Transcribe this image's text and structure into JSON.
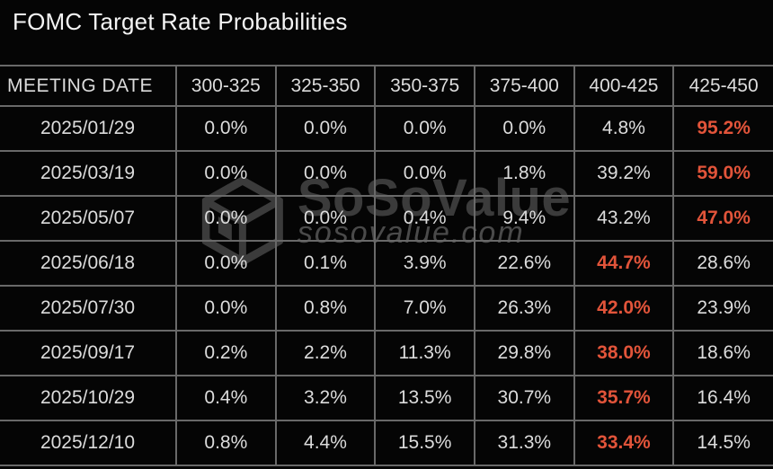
{
  "title": "FOMC Target Rate Probabilities",
  "watermark": {
    "brand": "SoSoValue",
    "site": "sosovalue.com"
  },
  "colors": {
    "background": "#050505",
    "title_text": "#f4f4f4",
    "cell_text": "#dcdcdc",
    "grid_line": "#696969",
    "highlight_text": "#e2543a",
    "watermark_text": "#3b3b3b"
  },
  "chart_data": {
    "type": "table",
    "title": "FOMC Target Rate Probabilities",
    "columns": [
      "MEETING DATE",
      "300-325",
      "325-350",
      "350-375",
      "375-400",
      "400-425",
      "425-450"
    ],
    "rows": [
      {
        "date": "2025/01/29",
        "values": [
          "0.0%",
          "0.0%",
          "0.0%",
          "0.0%",
          "4.8%",
          "95.2%"
        ],
        "highlight_index": 5
      },
      {
        "date": "2025/03/19",
        "values": [
          "0.0%",
          "0.0%",
          "0.0%",
          "1.8%",
          "39.2%",
          "59.0%"
        ],
        "highlight_index": 5
      },
      {
        "date": "2025/05/07",
        "values": [
          "0.0%",
          "0.0%",
          "0.4%",
          "9.4%",
          "43.2%",
          "47.0%"
        ],
        "highlight_index": 5
      },
      {
        "date": "2025/06/18",
        "values": [
          "0.0%",
          "0.1%",
          "3.9%",
          "22.6%",
          "44.7%",
          "28.6%"
        ],
        "highlight_index": 4
      },
      {
        "date": "2025/07/30",
        "values": [
          "0.0%",
          "0.8%",
          "7.0%",
          "26.3%",
          "42.0%",
          "23.9%"
        ],
        "highlight_index": 4
      },
      {
        "date": "2025/09/17",
        "values": [
          "0.2%",
          "2.2%",
          "11.3%",
          "29.8%",
          "38.0%",
          "18.6%"
        ],
        "highlight_index": 4
      },
      {
        "date": "2025/10/29",
        "values": [
          "0.4%",
          "3.2%",
          "13.5%",
          "30.7%",
          "35.7%",
          "16.4%"
        ],
        "highlight_index": 4
      },
      {
        "date": "2025/12/10",
        "values": [
          "0.8%",
          "4.4%",
          "15.5%",
          "31.3%",
          "33.4%",
          "14.5%"
        ],
        "highlight_index": 4
      }
    ]
  }
}
